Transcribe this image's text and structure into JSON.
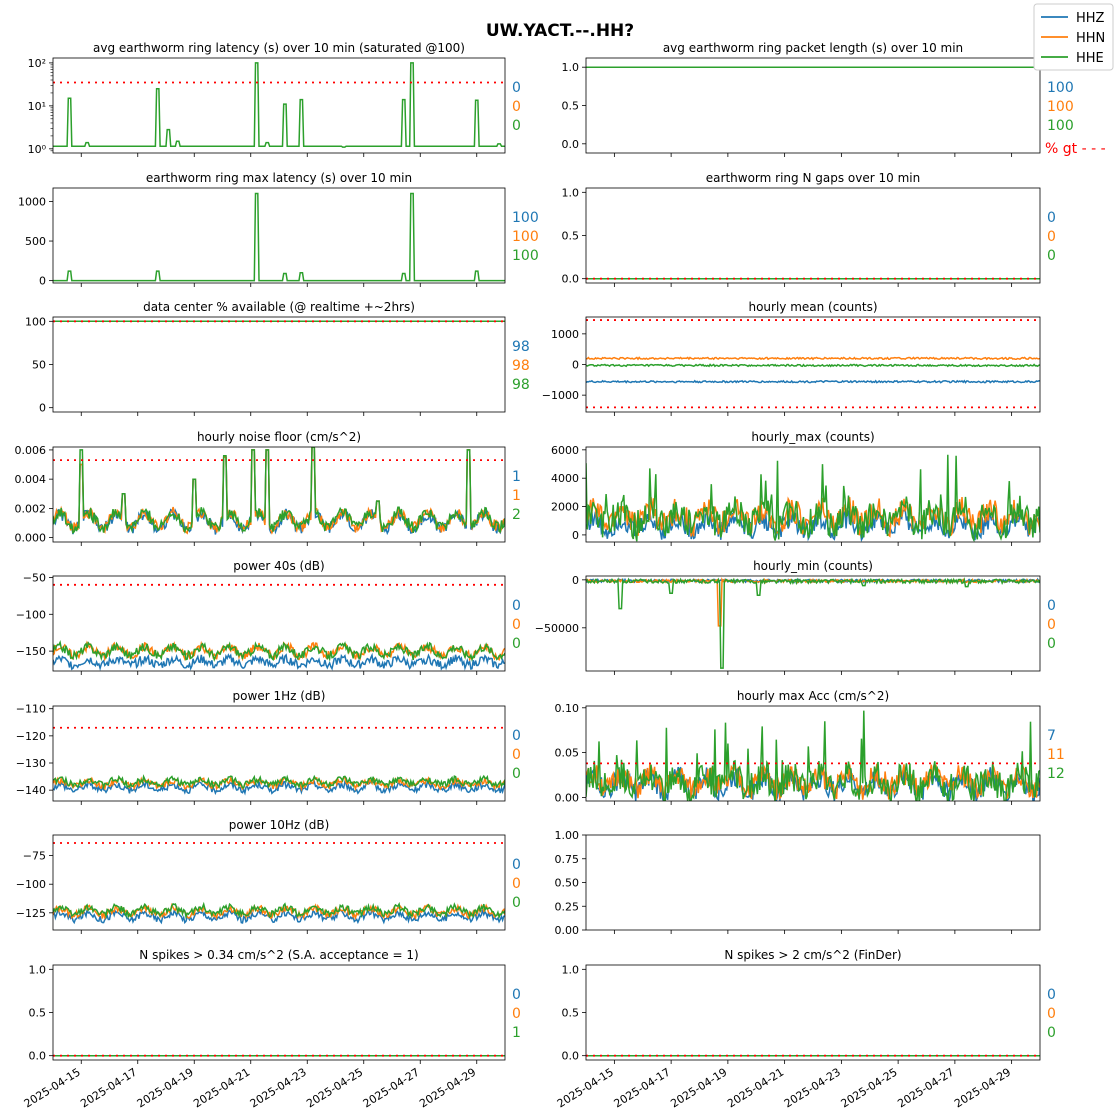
{
  "figure": {
    "title": "UW.YACT.--.HH?"
  },
  "colors": {
    "HHZ": "#1f77b4",
    "HHN": "#ff7f0e",
    "HHE": "#2ca02c",
    "threshold": "#ff0000"
  },
  "legend": {
    "placement": "top-right",
    "items": [
      {
        "label": "HHZ",
        "color": "#1f77b4"
      },
      {
        "label": "HHN",
        "color": "#ff7f0e"
      },
      {
        "label": "HHE",
        "color": "#2ca02c"
      }
    ]
  },
  "x_axis": {
    "start": "2025-04-14",
    "end": "2025-04-30",
    "tick_labels": [
      "2025-04-15",
      "2025-04-17",
      "2025-04-19",
      "2025-04-21",
      "2025-04-23",
      "2025-04-25",
      "2025-04-27",
      "2025-04-29"
    ]
  },
  "pct_gt_label": "% gt - - -",
  "chart_data": [
    {
      "type": "line",
      "title": "avg earthworm ring latency (s)   over 10 min (saturated @100)",
      "yscale": "log",
      "ylim": [
        0.8,
        130
      ],
      "yticks": [
        1,
        10,
        100
      ],
      "ytick_labels": [
        "10⁰",
        "10¹",
        "10²"
      ],
      "threshold": [
        35
      ],
      "pct": [
        "0",
        "0",
        "0"
      ],
      "series": [
        {
          "name": "HHE",
          "baseline": 1.15,
          "spikes": [
            [
              0.6,
              15
            ],
            [
              1.2,
              1.4
            ],
            [
              3.7,
              25
            ],
            [
              4.1,
              2.8
            ],
            [
              4.4,
              1.5
            ],
            [
              7.2,
              100
            ],
            [
              7.6,
              1.4
            ],
            [
              8.2,
              11
            ],
            [
              8.8,
              14
            ],
            [
              10.3,
              1.1
            ],
            [
              12.4,
              14
            ],
            [
              12.7,
              100
            ],
            [
              15.0,
              13.5
            ],
            [
              15.8,
              1.3
            ]
          ]
        }
      ]
    },
    {
      "type": "line",
      "title": "avg earthworm ring packet length (s)   over 10 min",
      "yscale": "linear",
      "ylim": [
        -0.12,
        1.12
      ],
      "yticks": [
        0,
        0.5,
        1
      ],
      "ytick_labels": [
        "0.0",
        "0.5",
        "1.0"
      ],
      "threshold": [],
      "pct": [
        "100",
        "100",
        "100"
      ],
      "show_pct_gt": true,
      "series": [
        {
          "name": "HHE",
          "baseline": 1.0,
          "spikes": []
        }
      ]
    },
    {
      "type": "line",
      "title": "earthworm ring max latency (s)   over 10 min",
      "yscale": "linear",
      "ylim": [
        -30,
        1170
      ],
      "yticks": [
        0,
        500,
        1000
      ],
      "ytick_labels": [
        "0",
        "500",
        "1000"
      ],
      "threshold": [],
      "pct": [
        "100",
        "100",
        "100"
      ],
      "series": [
        {
          "name": "HHE",
          "baseline": 0,
          "spikes": [
            [
              0.6,
              120
            ],
            [
              3.7,
              120
            ],
            [
              7.2,
              1100
            ],
            [
              8.2,
              90
            ],
            [
              8.8,
              100
            ],
            [
              12.4,
              90
            ],
            [
              12.7,
              1100
            ],
            [
              15.0,
              120
            ]
          ]
        }
      ]
    },
    {
      "type": "line",
      "title": "earthworm ring N gaps   over 10 min",
      "yscale": "linear",
      "ylim": [
        -0.05,
        1.05
      ],
      "yticks": [
        0,
        0.5,
        1
      ],
      "ytick_labels": [
        "0.0",
        "0.5",
        "1.0"
      ],
      "threshold": [
        0
      ],
      "pct": [
        "0",
        "0",
        "0"
      ],
      "series": [
        {
          "name": "HHE",
          "baseline": 0,
          "spikes": []
        }
      ]
    },
    {
      "type": "line",
      "title": "data center % available (@ realtime +~2hrs)",
      "yscale": "linear",
      "ylim": [
        -5,
        105
      ],
      "yticks": [
        0,
        50,
        100
      ],
      "ytick_labels": [
        "0",
        "50",
        "100"
      ],
      "threshold": [
        100
      ],
      "pct": [
        "98",
        "98",
        "98"
      ],
      "series": [
        {
          "name": "HHE",
          "baseline": 100,
          "spikes": []
        }
      ]
    },
    {
      "type": "line",
      "title": "hourly mean (counts)",
      "yscale": "linear",
      "ylim": [
        -1550,
        1550
      ],
      "yticks": [
        -1000,
        0,
        1000
      ],
      "ytick_labels": [
        "−1000",
        "0",
        "1000"
      ],
      "threshold": [
        1450,
        -1400
      ],
      "pct": [],
      "series": [
        {
          "name": "HHZ",
          "baseline": -560,
          "noise": 30,
          "spikes": []
        },
        {
          "name": "HHN",
          "baseline": 200,
          "noise": 30,
          "spikes": []
        },
        {
          "name": "HHE",
          "baseline": -30,
          "noise": 30,
          "spikes": []
        }
      ]
    },
    {
      "type": "line",
      "title": "hourly noise floor (cm/s^2)",
      "yscale": "linear",
      "ylim": [
        -0.0003,
        0.0062
      ],
      "yticks": [
        0,
        0.002,
        0.004,
        0.006
      ],
      "ytick_labels": [
        "0.000",
        "0.002",
        "0.004",
        "0.006"
      ],
      "threshold": [
        0.0053
      ],
      "pct": [
        "1",
        "1",
        "2"
      ],
      "series": [
        {
          "name": "HHZ",
          "baseline": 0.0011,
          "noise": 0.0004,
          "diurnal": 0.0005,
          "spikes": [
            [
              1.0,
              0.005
            ],
            [
              2.5,
              0.003
            ],
            [
              5.0,
              0.004
            ],
            [
              6.1,
              0.0055
            ],
            [
              7.1,
              0.006
            ],
            [
              7.6,
              0.006
            ],
            [
              9.2,
              0.0062
            ],
            [
              11.5,
              0.0025
            ],
            [
              14.7,
              0.006
            ]
          ]
        },
        {
          "name": "HHN",
          "baseline": 0.0012,
          "noise": 0.0004,
          "diurnal": 0.0005,
          "spikes": [
            [
              1.0,
              0.005
            ],
            [
              2.5,
              0.003
            ],
            [
              5.0,
              0.004
            ],
            [
              6.1,
              0.0055
            ],
            [
              7.1,
              0.006
            ],
            [
              7.6,
              0.006
            ],
            [
              9.2,
              0.0062
            ],
            [
              11.5,
              0.0025
            ],
            [
              14.7,
              0.006
            ]
          ]
        },
        {
          "name": "HHE",
          "baseline": 0.0012,
          "noise": 0.0004,
          "diurnal": 0.0005,
          "spikes": [
            [
              1.0,
              0.006
            ],
            [
              2.5,
              0.003
            ],
            [
              5.0,
              0.004
            ],
            [
              6.1,
              0.0056
            ],
            [
              7.1,
              0.006
            ],
            [
              7.6,
              0.006
            ],
            [
              9.2,
              0.0062
            ],
            [
              11.5,
              0.0025
            ],
            [
              14.7,
              0.006
            ]
          ]
        }
      ]
    },
    {
      "type": "line",
      "title": "hourly_max (counts)",
      "yscale": "linear",
      "ylim": [
        -500,
        6200
      ],
      "yticks": [
        0,
        2000,
        4000,
        6000
      ],
      "ytick_labels": [
        "0",
        "2000",
        "4000",
        "6000"
      ],
      "threshold": [],
      "pct": [],
      "series": [
        {
          "name": "HHZ",
          "baseline": 700,
          "noise": 700,
          "diurnal": 400,
          "spikes": []
        },
        {
          "name": "HHN",
          "baseline": 1300,
          "noise": 900,
          "diurnal": 600,
          "spikes": []
        },
        {
          "name": "HHE",
          "baseline": 1200,
          "noise": 1100,
          "diurnal": 600,
          "burst": 5800,
          "spikes": []
        }
      ]
    },
    {
      "type": "line",
      "title": "power 40s (dB)",
      "yscale": "linear",
      "ylim": [
        -177,
        -48
      ],
      "yticks": [
        -150,
        -100,
        -50
      ],
      "ytick_labels": [
        "−150",
        "−100",
        "−50"
      ],
      "threshold": [
        -60
      ],
      "pct": [
        "0",
        "0",
        "0"
      ],
      "series": [
        {
          "name": "HHZ",
          "baseline": -165,
          "noise": 6,
          "diurnal": 4,
          "spikes": []
        },
        {
          "name": "HHN",
          "baseline": -150,
          "noise": 6,
          "diurnal": 6,
          "spikes": []
        },
        {
          "name": "HHE",
          "baseline": -150,
          "noise": 6,
          "diurnal": 6,
          "spikes": []
        }
      ]
    },
    {
      "type": "line",
      "title": "hourly_min (counts)",
      "yscale": "linear",
      "ylim": [
        -95000,
        4000
      ],
      "yticks": [
        -50000,
        0
      ],
      "ytick_labels": [
        "−50000",
        "0"
      ],
      "threshold": [],
      "pct": [
        "0",
        "0",
        "0"
      ],
      "series": [
        {
          "name": "HHZ",
          "baseline": -1000,
          "noise": 1500,
          "spikes": []
        },
        {
          "name": "HHN",
          "baseline": -1200,
          "noise": 1500,
          "spikes": [
            [
              4.7,
              -48000
            ]
          ]
        },
        {
          "name": "HHE",
          "baseline": -1500,
          "noise": 2000,
          "spikes": [
            [
              1.2,
              -30000
            ],
            [
              3.0,
              -14000
            ],
            [
              4.8,
              -92000
            ],
            [
              6.1,
              -16000
            ],
            [
              9.8,
              -6000
            ],
            [
              13.4,
              -7000
            ]
          ]
        }
      ]
    },
    {
      "type": "line",
      "title": "power 1Hz (dB)",
      "yscale": "linear",
      "ylim": [
        -144,
        -109
      ],
      "yticks": [
        -140,
        -130,
        -120,
        -110
      ],
      "ytick_labels": [
        "−140",
        "−130",
        "−120",
        "−110"
      ],
      "threshold": [
        -117
      ],
      "pct": [
        "0",
        "0",
        "0"
      ],
      "series": [
        {
          "name": "HHZ",
          "baseline": -139,
          "noise": 1.2,
          "diurnal": 1,
          "spikes": []
        },
        {
          "name": "HHN",
          "baseline": -137.5,
          "noise": 1.2,
          "diurnal": 1,
          "spikes": []
        },
        {
          "name": "HHE",
          "baseline": -137,
          "noise": 1.2,
          "diurnal": 1,
          "spikes": []
        }
      ]
    },
    {
      "type": "line",
      "title": "hourly max Acc (cm/s^2)",
      "yscale": "linear",
      "ylim": [
        -0.004,
        0.102
      ],
      "yticks": [
        0,
        0.05,
        0.1
      ],
      "ytick_labels": [
        "0.00",
        "0.05",
        "0.10"
      ],
      "threshold": [
        0.038
      ],
      "pct": [
        "7",
        "11",
        "12"
      ],
      "series": [
        {
          "name": "HHZ",
          "baseline": 0.015,
          "noise": 0.012,
          "diurnal": 0.008,
          "spikes": []
        },
        {
          "name": "HHN",
          "baseline": 0.018,
          "noise": 0.013,
          "diurnal": 0.008,
          "spikes": []
        },
        {
          "name": "HHE",
          "baseline": 0.017,
          "noise": 0.018,
          "diurnal": 0.008,
          "burst": 0.097,
          "spikes": []
        }
      ]
    },
    {
      "type": "line",
      "title": "power 10Hz (dB)",
      "yscale": "linear",
      "ylim": [
        -140,
        -57
      ],
      "yticks": [
        -125,
        -100,
        -75
      ],
      "ytick_labels": [
        "−125",
        "−100",
        "−75"
      ],
      "threshold": [
        -64
      ],
      "pct": [
        "0",
        "0",
        "0"
      ],
      "series": [
        {
          "name": "HHZ",
          "baseline": -128,
          "noise": 3,
          "diurnal": 3,
          "spikes": []
        },
        {
          "name": "HHN",
          "baseline": -124,
          "noise": 3,
          "diurnal": 3,
          "spikes": []
        },
        {
          "name": "HHE",
          "baseline": -123,
          "noise": 3,
          "diurnal": 3,
          "spikes": []
        }
      ]
    },
    {
      "type": "line",
      "title": "",
      "yscale": "linear",
      "ylim": [
        0,
        1
      ],
      "yticks": [
        0,
        0.25,
        0.5,
        0.75,
        1
      ],
      "ytick_labels": [
        "0.00",
        "0.25",
        "0.50",
        "0.75",
        "1.00"
      ],
      "threshold": [],
      "pct": [],
      "series": []
    },
    {
      "type": "line",
      "title": "N spikes > 0.34 cm/s^2 (S.A. acceptance = 1)",
      "yscale": "linear",
      "ylim": [
        -0.05,
        1.05
      ],
      "yticks": [
        0,
        0.5,
        1
      ],
      "ytick_labels": [
        "0.0",
        "0.5",
        "1.0"
      ],
      "threshold": [
        0
      ],
      "pct": [
        "0",
        "0",
        "1"
      ],
      "series": [
        {
          "name": "HHE",
          "baseline": 0,
          "spikes": []
        }
      ]
    },
    {
      "type": "line",
      "title": "N spikes > 2 cm/s^2 (FinDer)",
      "yscale": "linear",
      "ylim": [
        -0.05,
        1.05
      ],
      "yticks": [
        0,
        0.5,
        1
      ],
      "ytick_labels": [
        "0.0",
        "0.5",
        "1.0"
      ],
      "threshold": [
        0
      ],
      "pct": [
        "0",
        "0",
        "0"
      ],
      "series": [
        {
          "name": "HHE",
          "baseline": 0,
          "spikes": []
        }
      ]
    }
  ]
}
